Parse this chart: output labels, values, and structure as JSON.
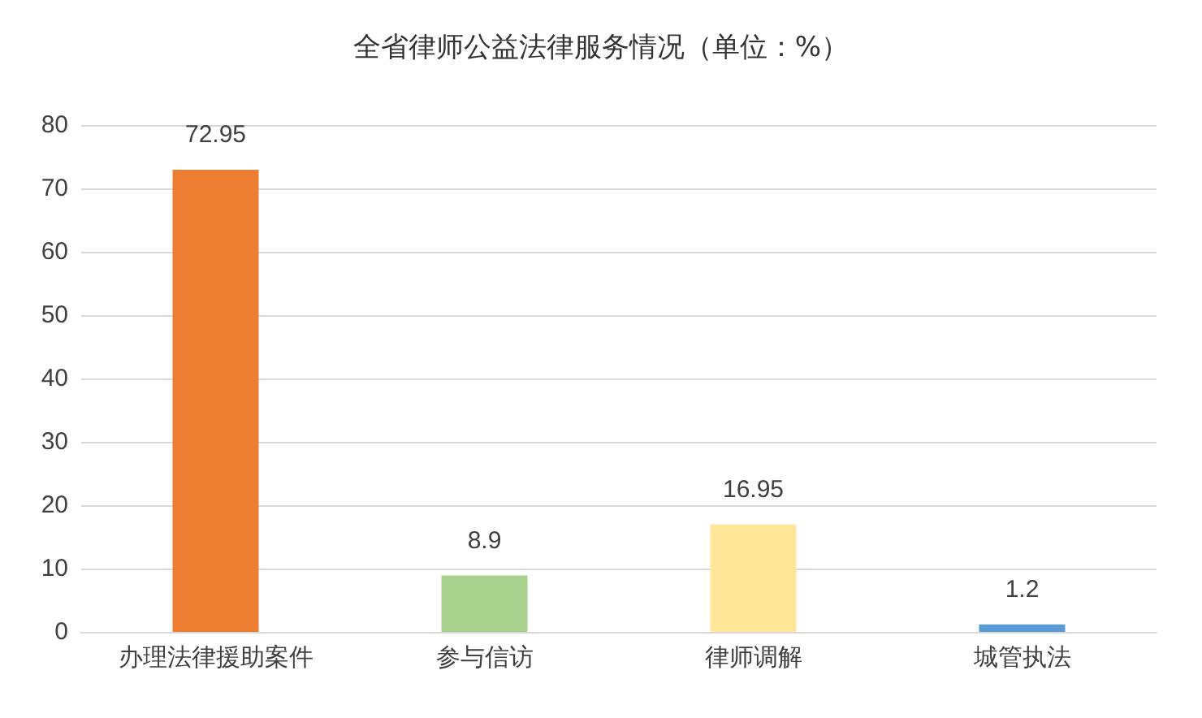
{
  "chart_data": {
    "type": "bar",
    "title": "全省律师公益法律服务情况（单位：%）",
    "categories": [
      "办理法律援助案件",
      "参与信访",
      "律师调解",
      "城管执法"
    ],
    "values": [
      72.95,
      8.9,
      16.95,
      1.2
    ],
    "colors": [
      "#ed7d31",
      "#a9d18e",
      "#ffe699",
      "#5b9bd5"
    ],
    "ylim": [
      0,
      80
    ],
    "yticks": [
      0,
      10,
      20,
      30,
      40,
      50,
      60,
      70,
      80
    ],
    "grid": "y",
    "data_labels": true
  }
}
